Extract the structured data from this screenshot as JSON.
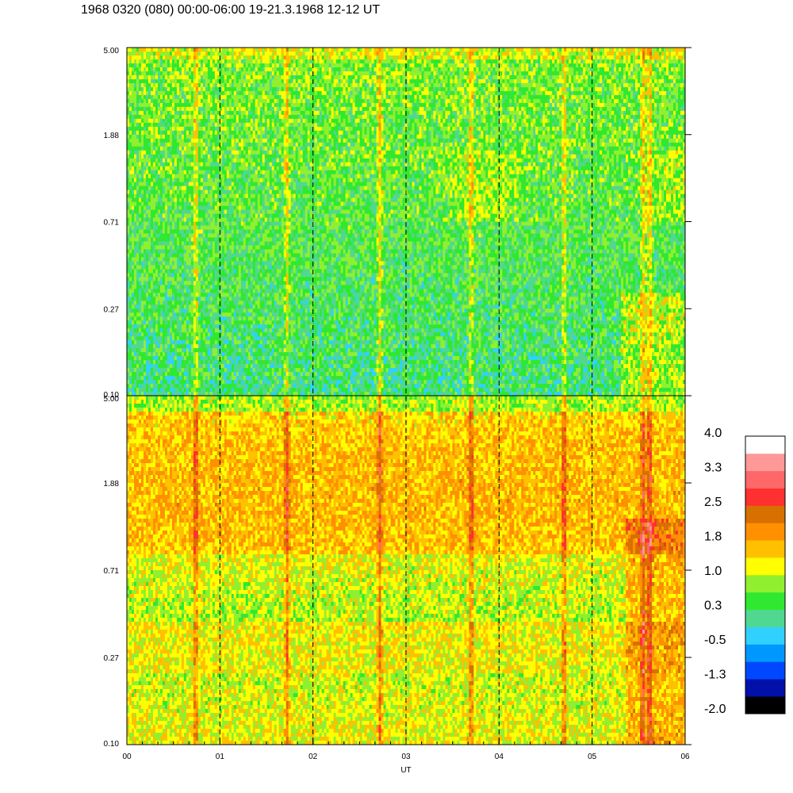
{
  "title": "1968 0320 (080) 00:00-06:00 19-21.3.1968  12-12 UT",
  "chart_data": {
    "type": "heatmap",
    "panels": [
      {
        "name": "upper",
        "y_ticks": [
          "5.00",
          "1.88",
          "0.71",
          "0.27",
          "0.10"
        ],
        "ylim": [
          0.1,
          5.0
        ],
        "y_scale": "log",
        "dominant_colors": [
          "green",
          "yellow-green",
          "cyan"
        ]
      },
      {
        "name": "lower",
        "y_ticks": [
          "5.00",
          "1.88",
          "0.71",
          "0.27",
          "0.10"
        ],
        "ylim": [
          0.1,
          5.0
        ],
        "y_scale": "log",
        "dominant_colors": [
          "orange",
          "yellow",
          "red"
        ]
      }
    ],
    "x_ticks": [
      "00",
      "01",
      "02",
      "03",
      "04",
      "05",
      "06"
    ],
    "xlim": [
      0,
      6
    ],
    "xlabel": "UT",
    "hour_gridlines": [
      1,
      2,
      3,
      4,
      5
    ],
    "gridline_style": "dashed",
    "colorbar": {
      "labels": [
        "4.0",
        "3.3",
        "2.5",
        "1.8",
        "1.0",
        "0.3",
        "-0.5",
        "-1.3",
        "-2.0"
      ],
      "range": [
        -2.0,
        4.0
      ],
      "colors": [
        "#000000",
        "#0010a8",
        "#0048ff",
        "#0098ff",
        "#30d0ff",
        "#50d890",
        "#30e830",
        "#90f030",
        "#ffff00",
        "#ffc000",
        "#ff9000",
        "#d87000",
        "#ff3030",
        "#ff6868",
        "#ff9898",
        "#ffffff"
      ]
    }
  }
}
